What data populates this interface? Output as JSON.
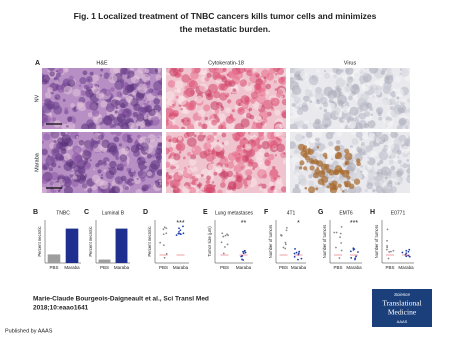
{
  "title": "Fig. 1 Localized treatment of TNBC cancers kills tumor cells and minimizes the metastatic burden.",
  "panel_a": {
    "label": "A",
    "columns": [
      "H&E",
      "Cytokeratin-18",
      "Virus"
    ],
    "rows": [
      "NV",
      "Maraba"
    ]
  },
  "panels": [
    {
      "label": "B",
      "title": "TNBC",
      "y_label": "Percent necrotic",
      "type": "bar",
      "categories": [
        "PBS",
        "Maraba"
      ],
      "values": [
        20,
        80
      ],
      "colors": [
        "#9e9e9e",
        "#1f2f8f"
      ],
      "ylim": [
        0,
        100
      ]
    },
    {
      "label": "C",
      "title": "Luminal B",
      "y_label": "Percent necrotic",
      "type": "bar",
      "categories": [
        "PBS",
        "Maraba"
      ],
      "values": [
        8,
        80
      ],
      "colors": [
        "#9e9e9e",
        "#1f2f8f"
      ],
      "ylim": [
        0,
        100
      ]
    },
    {
      "label": "D",
      "y_label": "Percent necrotic",
      "type": "dots",
      "categories": [
        "PBS",
        "Maraba"
      ],
      "annotation": "***"
    },
    {
      "label": "E",
      "title": "Lung metastases",
      "y_label": "Tumor size (μm)",
      "type": "dots",
      "categories": [
        "PBS",
        "Maraba"
      ],
      "annotation": "**"
    },
    {
      "label": "F",
      "title": "4T1",
      "y_label": "Number of tumors",
      "type": "dots",
      "categories": [
        "PBS",
        "Maraba"
      ],
      "annotation": "*"
    },
    {
      "label": "G",
      "title": "EMT6",
      "y_label": "Number of tumors",
      "type": "dots",
      "categories": [
        "PBS",
        "Maraba"
      ],
      "annotation": "***"
    },
    {
      "label": "H",
      "title": "E0771",
      "y_label": "Number of tumors",
      "type": "dots",
      "categories": [
        "PBS",
        "Maraba"
      ]
    }
  ],
  "citation": [
    "Marie-Claude Bourgeois-Daigneault et al., Sci Transl Med",
    "2018;10:eaao1641"
  ],
  "logo": [
    "Science",
    "Translational",
    "Medicine",
    "AAAS"
  ],
  "footer": "Published by AAAS"
}
